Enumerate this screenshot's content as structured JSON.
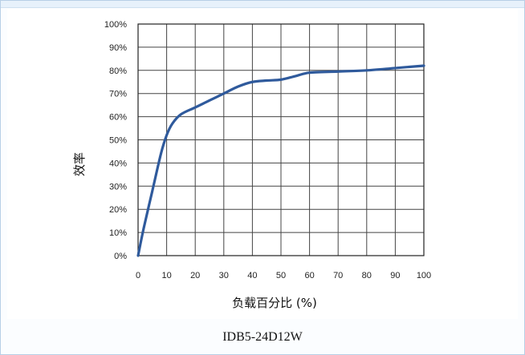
{
  "caption": "IDB5-24D12W",
  "chart_data": {
    "type": "line",
    "title": "",
    "xlabel": "负载百分比 (%)",
    "ylabel": "效率",
    "xlim": [
      0,
      100
    ],
    "ylim": [
      0,
      100
    ],
    "x_ticks": [
      "0",
      "10",
      "20",
      "30",
      "40",
      "50",
      "60",
      "70",
      "80",
      "90",
      "100"
    ],
    "y_ticks": [
      "0%",
      "10%",
      "20%",
      "30%",
      "40%",
      "50%",
      "60%",
      "70%",
      "80%",
      "90%",
      "100%"
    ],
    "grid": true,
    "line_color": "#2f5a9c",
    "series": [
      {
        "x": [
          0,
          2,
          5,
          8,
          10,
          12,
          15,
          20,
          25,
          30,
          35,
          40,
          45,
          50,
          55,
          60,
          70,
          80,
          90,
          100
        ],
        "y": [
          0,
          12,
          28,
          44,
          52,
          57,
          61,
          64,
          67,
          70,
          73,
          75,
          75.6,
          76,
          77.5,
          79,
          79.5,
          80,
          81,
          82
        ]
      }
    ]
  }
}
